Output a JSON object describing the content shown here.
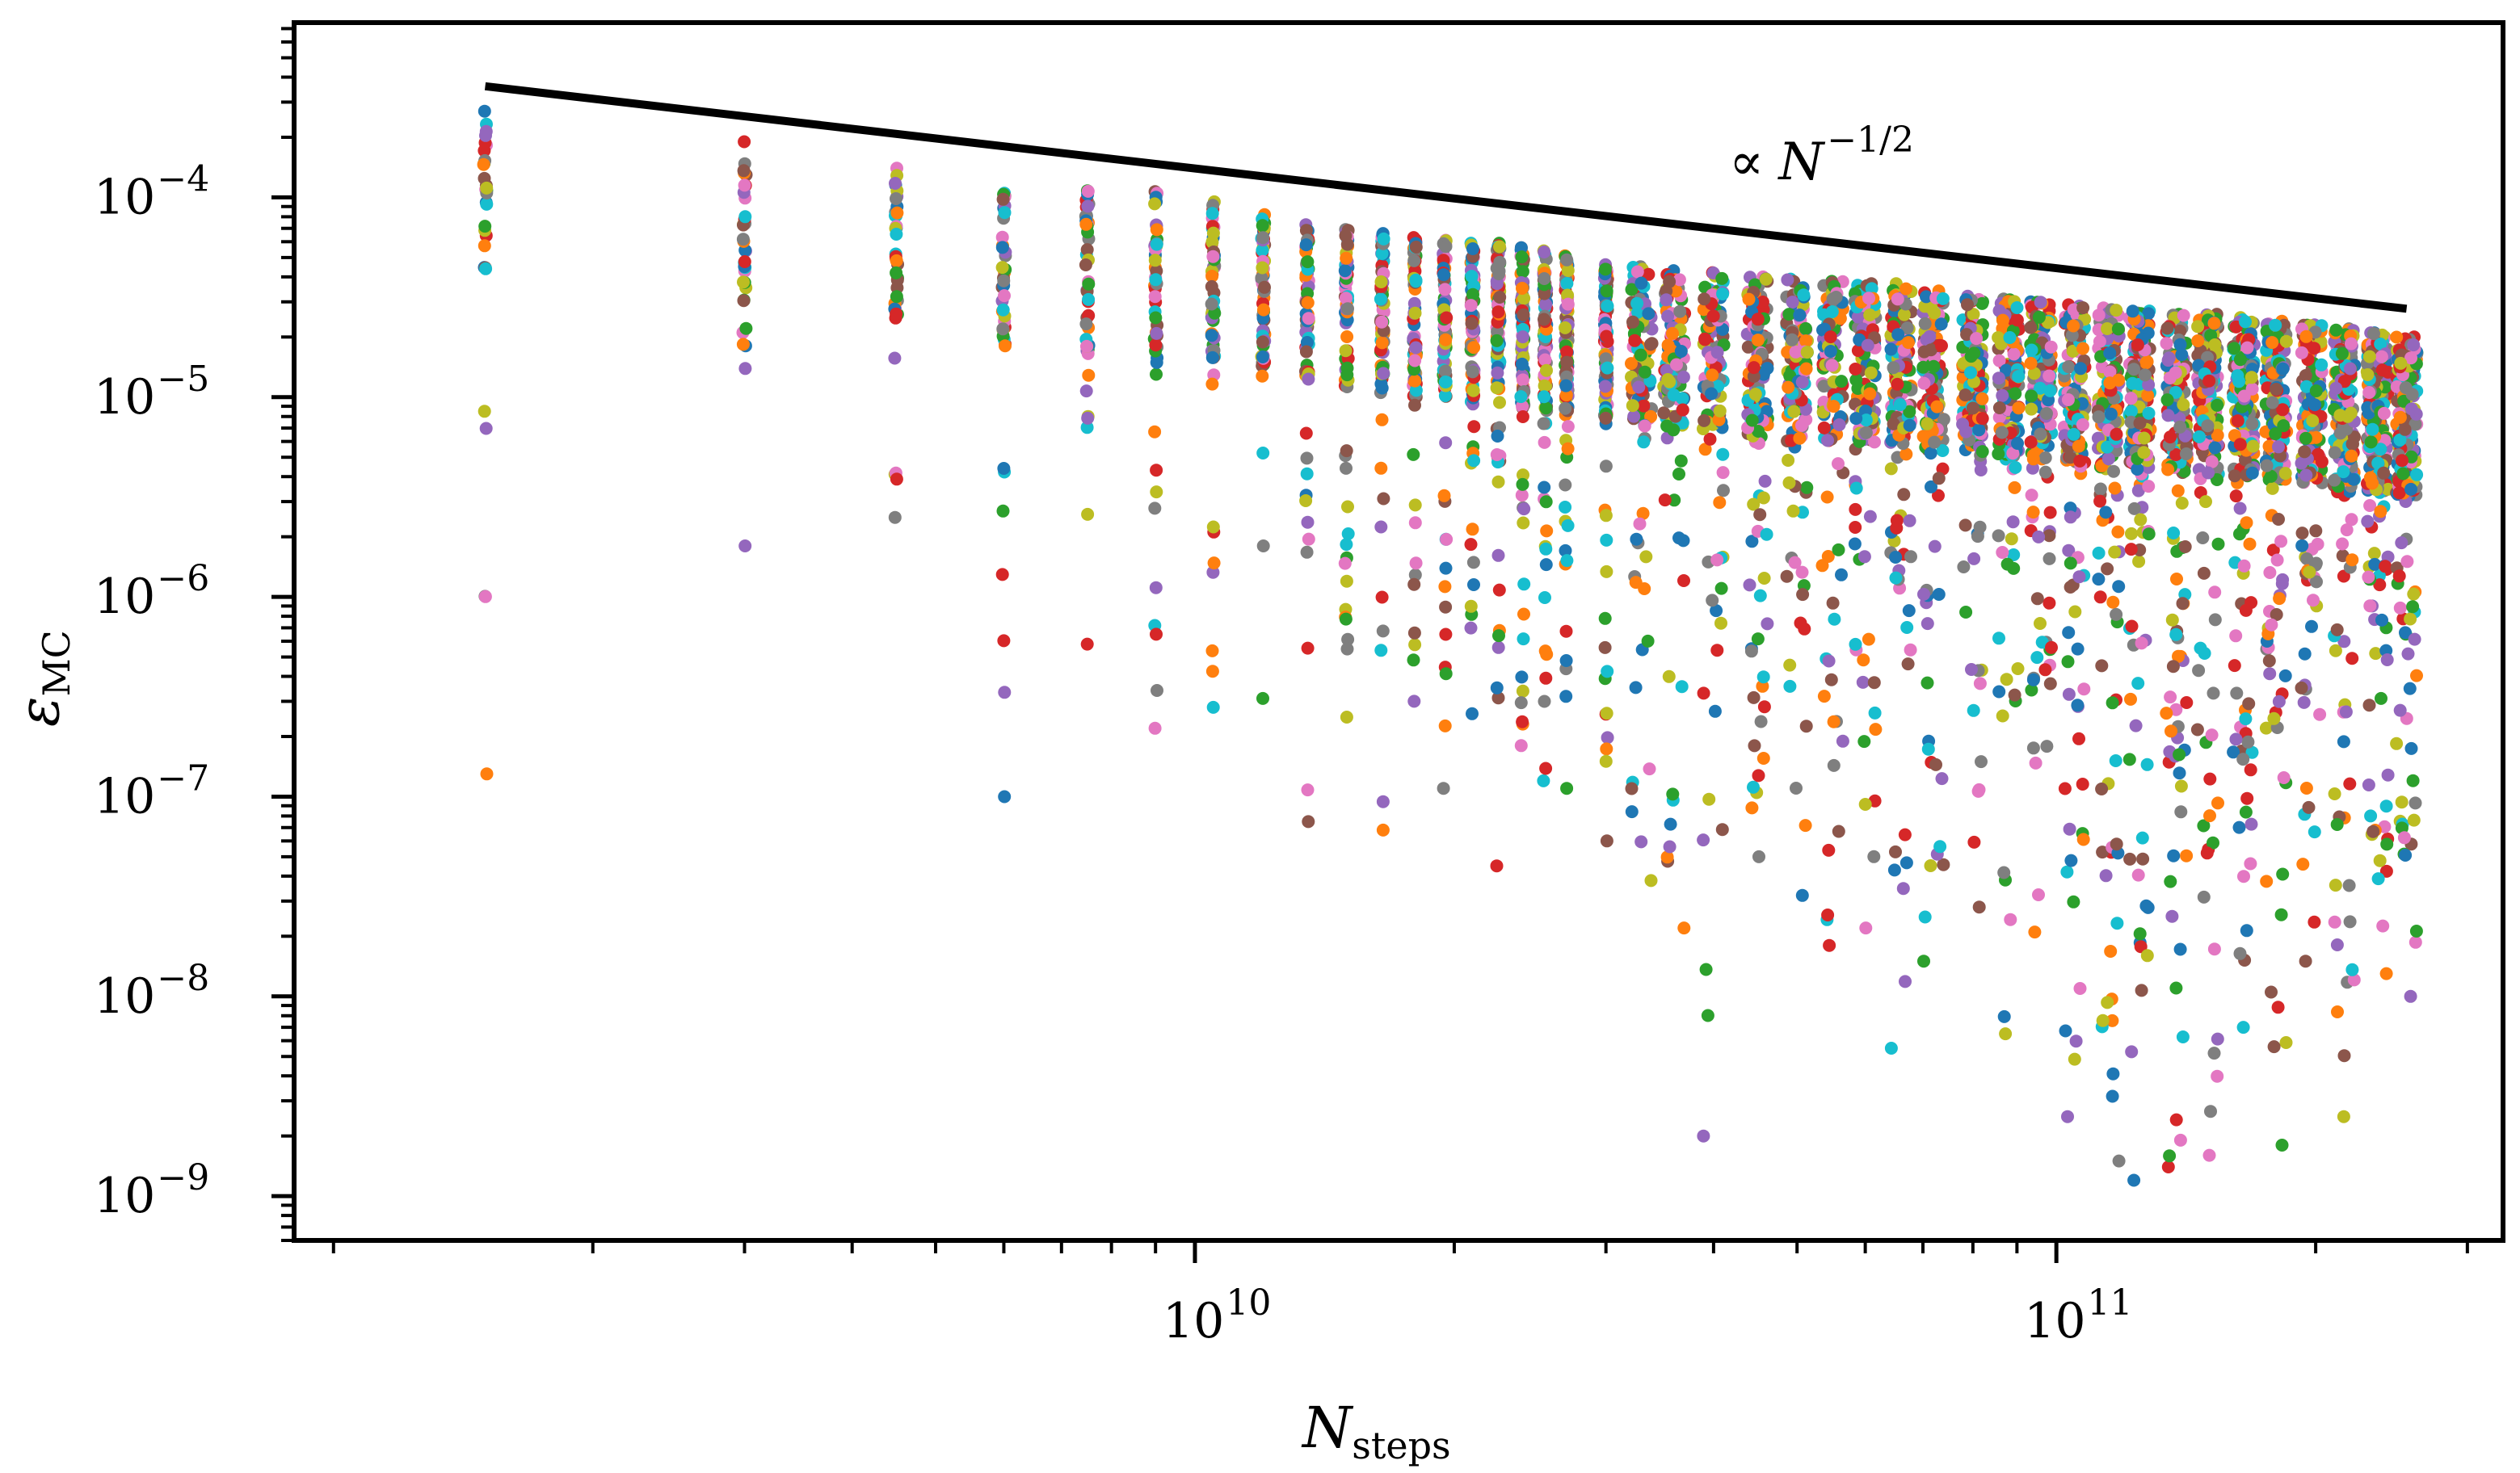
{
  "chart_data": {
    "type": "scatter",
    "title": "",
    "xlabel": "N_steps",
    "ylabel": "ε_MC",
    "xscale": "log",
    "yscale": "log",
    "xlim": [
      900000000,
      330000000000
    ],
    "ylim": [
      6e-10,
      0.00075
    ],
    "x_ticks": [
      {
        "value": 10000000000,
        "base": "10",
        "exp": "10"
      },
      {
        "value": 100000000000,
        "base": "10",
        "exp": "11"
      }
    ],
    "y_ticks": [
      {
        "value": 1e-09,
        "base": "10",
        "exp": "−9"
      },
      {
        "value": 1e-08,
        "base": "10",
        "exp": "−8"
      },
      {
        "value": 1e-07,
        "base": "10",
        "exp": "−7"
      },
      {
        "value": 1e-06,
        "base": "10",
        "exp": "−6"
      },
      {
        "value": 1e-05,
        "base": "10",
        "exp": "−5"
      },
      {
        "value": 0.0001,
        "base": "10",
        "exp": "−4"
      }
    ],
    "x_columns": [
      1500000000,
      3000000000,
      4500000000,
      6000000000,
      7500000000,
      9000000000,
      10500000000,
      12000000000,
      13500000000,
      15000000000,
      16500000000,
      18000000000,
      19500000000,
      21000000000,
      22500000000,
      24000000000,
      25500000000,
      27000000000,
      30000000000,
      33000000000,
      36000000000,
      40000000000,
      45000000000,
      50000000000,
      55000000000,
      60000000000,
      66000000000,
      72000000000,
      80000000000,
      88000000000,
      96000000000,
      105000000000,
      115000000000,
      125000000000,
      138000000000,
      150000000000,
      165000000000,
      180000000000,
      198000000000,
      216000000000,
      236000000000,
      255000000000
    ],
    "series_colors": [
      "#1f77b4",
      "#ff7f0e",
      "#2ca02c",
      "#d62728",
      "#9467bd",
      "#8c564b",
      "#e377c2",
      "#7f7f7f",
      "#bcbd22",
      "#17becf"
    ],
    "n_runs": 10,
    "reference_line": {
      "label_prefix": "∝",
      "label_var": "N",
      "label_exp": "−1/2",
      "x": [
        1500000000,
        255000000000
      ],
      "y": [
        0.00036,
        2.77e-05
      ]
    },
    "envelope_upper": [
      0.00027,
      0.00019,
      0.00014,
      0.000105,
      0.000108,
      0.000107,
      9.5e-05,
      8.2e-05,
      7.3e-05,
      6.9e-05,
      6.6e-05,
      6.3e-05,
      6.1e-05,
      5.9e-05,
      5.9e-05,
      5.6e-05,
      5.4e-05,
      5.1e-05,
      4.6e-05,
      4.5e-05,
      4.3e-05,
      4.2e-05,
      4e-05,
      3.9e-05,
      3.8e-05,
      3.7e-05,
      3.7e-05,
      3.4e-05,
      3.2e-05,
      3.1e-05,
      3e-05,
      2.9e-05,
      2.8e-05,
      2.7e-05,
      2.6e-05,
      2.6e-05,
      2.5e-05,
      2.4e-05,
      2.3e-05,
      2.2e-05,
      2.1e-05,
      2e-05
    ],
    "envelope_lower": [
      1.3e-07,
      1.8e-06,
      2.5e-06,
      1e-07,
      5.8e-07,
      2.2e-07,
      2.8e-07,
      3.1e-07,
      7.5e-08,
      2.5e-07,
      6.8e-08,
      3e-07,
      1.1e-07,
      2.6e-07,
      4.5e-08,
      1.8e-07,
      1.2e-07,
      1.1e-07,
      6e-08,
      3.8e-08,
      2.2e-08,
      2e-09,
      5e-08,
      3.2e-08,
      1.8e-08,
      2.2e-08,
      5.5e-09,
      1.5e-08,
      2.8e-08,
      6.5e-09,
      2.1e-08,
      2.5e-09,
      1.5e-09,
      1.2e-09,
      1.4e-09,
      1.6e-09,
      7e-09,
      1.8e-09,
      1.5e-08,
      2.5e-09,
      1.3e-08,
      1e-08
    ]
  }
}
